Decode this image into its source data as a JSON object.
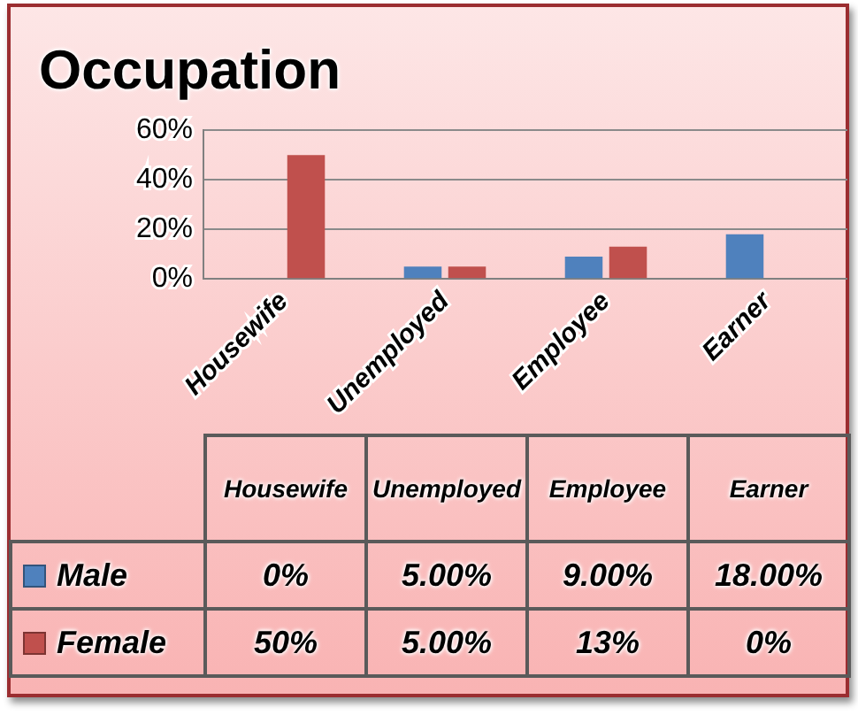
{
  "chart_data": {
    "type": "bar",
    "title": "Occupation",
    "categories": [
      "Housewife",
      "Unemployed",
      "Employee",
      "Earner"
    ],
    "series": [
      {
        "name": "Male",
        "color": "#4f81bd",
        "values": [
          0,
          5,
          9,
          18
        ],
        "value_labels": [
          "0%",
          "5.00%",
          "9.00%",
          "18.00%"
        ]
      },
      {
        "name": "Female",
        "color": "#c0504d",
        "values": [
          50,
          5,
          13,
          0
        ],
        "value_labels": [
          "50%",
          "5.00%",
          "13%",
          "0%"
        ]
      }
    ],
    "ylim": [
      0,
      60
    ],
    "yticks": [
      {
        "value": 0,
        "label": "0%"
      },
      {
        "value": 20,
        "label": "20%"
      },
      {
        "value": 40,
        "label": "40%"
      },
      {
        "value": 60,
        "label": "60%"
      }
    ],
    "grid": "y",
    "legend": "bottom"
  }
}
